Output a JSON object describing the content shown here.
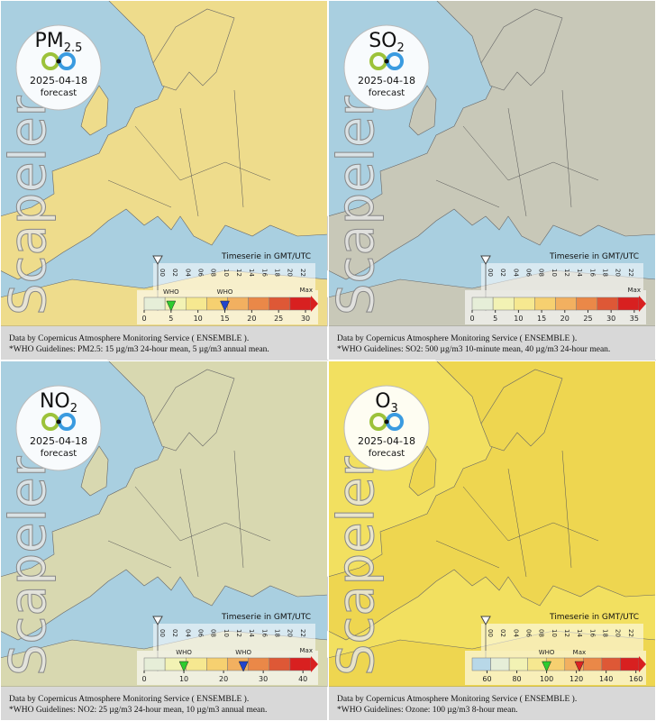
{
  "panels": [
    {
      "title": "PM",
      "title_sub": "2.5",
      "date": "2025-04-18",
      "subtitle": "forecast",
      "watermark": "Scapeler",
      "timeserie": "Timeserie in GMT/UTC",
      "hours": [
        "00",
        "02",
        "04",
        "06",
        "08",
        "10",
        "12",
        "14",
        "16",
        "18",
        "20",
        "22"
      ],
      "scale_lim": [
        0,
        31
      ],
      "scale_ticks": [
        0,
        5,
        10,
        15,
        20,
        25,
        30
      ],
      "max_label": "Max",
      "scale_colors": [
        "#e6eed8",
        "#f2f2b4",
        "#f6e890",
        "#f6d070",
        "#f2b060",
        "#ea8848",
        "#de5836",
        "#d82020"
      ],
      "who": [
        {
          "value": 5,
          "label": "WHO",
          "color": "#2ecc2e"
        },
        {
          "value": 15,
          "label": "WHO",
          "color": "#2244cc"
        }
      ],
      "land_color": "#eedc8c",
      "sea_color": "#a9cfe0",
      "footer": [
        "Data by Copernicus Atmosphere Monitoring Service ( ENSEMBLE ).",
        "*WHO Guidelines: PM2.5: 15 µg/m3 24-hour mean, 5 µg/m3 annual mean."
      ]
    },
    {
      "title": "SO",
      "title_sub": "2",
      "date": "2025-04-18",
      "subtitle": "forecast",
      "watermark": "Scapeler",
      "timeserie": "Timeserie in GMT/UTC",
      "hours": [
        "00",
        "02",
        "04",
        "06",
        "08",
        "10",
        "12",
        "14",
        "16",
        "18",
        "20",
        "22"
      ],
      "scale_lim": [
        0,
        36
      ],
      "scale_ticks": [
        0,
        5,
        10,
        15,
        20,
        25,
        30,
        35
      ],
      "max_label": "Max",
      "scale_colors": [
        "#e6eed8",
        "#f2f2b4",
        "#f6e890",
        "#f6d070",
        "#f2b060",
        "#ea8848",
        "#de5836",
        "#d82020"
      ],
      "who": [],
      "land_color": "#c8c8b8",
      "sea_color": "#a9cfe0",
      "footer": [
        "Data by Copernicus Atmosphere Monitoring Service ( ENSEMBLE ).",
        "*WHO Guidelines: SO2: 500 µg/m3 10-minute mean, 40 µg/m3 24-hour mean."
      ]
    },
    {
      "title": "NO",
      "title_sub": "2",
      "date": "2025-04-18",
      "subtitle": "forecast",
      "watermark": "Scapeler",
      "timeserie": "Timeserie in GMT/UTC",
      "hours": [
        "00",
        "02",
        "04",
        "06",
        "08",
        "10",
        "12",
        "14",
        "16",
        "18",
        "20",
        "22"
      ],
      "scale_lim": [
        0,
        42
      ],
      "scale_ticks": [
        0,
        10,
        20,
        30,
        40
      ],
      "max_label": "Max",
      "scale_colors": [
        "#e6eed8",
        "#f2f2b4",
        "#f6e890",
        "#f6d070",
        "#f2b060",
        "#ea8848",
        "#de5836",
        "#d82020"
      ],
      "who": [
        {
          "value": 10,
          "label": "WHO",
          "color": "#2ecc2e"
        },
        {
          "value": 25,
          "label": "WHO",
          "color": "#2244cc"
        }
      ],
      "land_color": "#d8d8b0",
      "sea_color": "#a9cfe0",
      "footer": [
        "Data by Copernicus Atmosphere Monitoring Service ( ENSEMBLE ).",
        "*WHO Guidelines: NO2: 25 µg/m3 24-hour mean, 10 µg/m3 annual mean."
      ]
    },
    {
      "title": "O",
      "title_sub": "3",
      "date": "2025-04-18",
      "subtitle": "forecast",
      "watermark": "Scapeler",
      "timeserie": "Timeserie in GMT/UTC",
      "hours": [
        "00",
        "02",
        "04",
        "06",
        "08",
        "10",
        "12",
        "14",
        "16",
        "18",
        "20",
        "22"
      ],
      "scale_lim": [
        50,
        162
      ],
      "scale_ticks": [
        60,
        80,
        100,
        120,
        140,
        160
      ],
      "max_label": null,
      "scale_colors": [
        "#b8d8e8",
        "#e6eed8",
        "#f2f2b4",
        "#f6e890",
        "#f6d070",
        "#f2b060",
        "#ea8848",
        "#de5836",
        "#d82020"
      ],
      "who": [
        {
          "value": 100,
          "label": "WHO",
          "color": "#2ecc2e"
        },
        {
          "value": 122,
          "label": "Max",
          "color": "#dd2222"
        }
      ],
      "land_color": "#eed650",
      "sea_color": "#f2e060",
      "footer": [
        "Data by Copernicus Atmosphere Monitoring Service ( ENSEMBLE ).",
        "*WHO Guidelines: Ozone: 100 µg/m3 8-hour mean."
      ]
    }
  ]
}
